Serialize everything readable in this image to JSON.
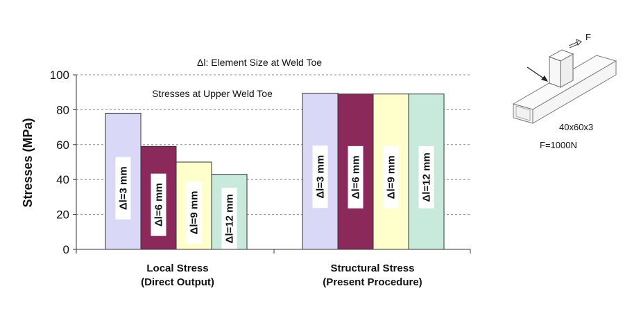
{
  "chart_data": {
    "type": "bar",
    "title": "Δl: Element Size at Weld Toe",
    "subtitle": "Stresses at Upper Weld Toe",
    "ylabel": "Stresses (MPa)",
    "ylim": [
      0,
      100
    ],
    "yticks": [
      0,
      20,
      40,
      60,
      80,
      100
    ],
    "grid": true,
    "groups": [
      {
        "label_line1": "Local Stress",
        "label_line2": "(Direct Output)"
      },
      {
        "label_line1": "Structural Stress",
        "label_line2": "(Present Procedure)"
      }
    ],
    "series": [
      {
        "name": "Δl=3 mm",
        "color": "#d9d9f7",
        "values": [
          78,
          89.5
        ]
      },
      {
        "name": "Δl=6 mm",
        "color": "#8b2a5a",
        "values": [
          59,
          89
        ]
      },
      {
        "name": "Δl=9 mm",
        "color": "#ffffcc",
        "values": [
          50,
          89
        ]
      },
      {
        "name": "Δl=12 mm",
        "color": "#c8eadc",
        "values": [
          43,
          89
        ]
      }
    ]
  },
  "figure": {
    "force_label": "F",
    "section_label": "40x60x3",
    "load_label": "F=1000N"
  }
}
